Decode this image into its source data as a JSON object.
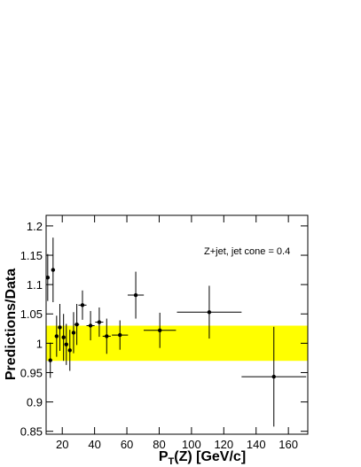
{
  "chart_data": {
    "type": "errorbar",
    "xlabel": [
      "P",
      "T",
      "(Z) [GeV/c]"
    ],
    "ylabel": "Predictions/Data",
    "annotation": "Z+jet, jet cone = 0.4",
    "xlim": [
      10,
      172
    ],
    "ylim": [
      0.845,
      1.218
    ],
    "xticks": [
      20,
      40,
      60,
      80,
      100,
      120,
      140,
      160
    ],
    "yticks": [
      0.85,
      0.9,
      0.95,
      1,
      1.05,
      1.1,
      1.15,
      1.2
    ],
    "band": {
      "range": [
        0.97,
        1.03
      ],
      "color": "#ffff00"
    },
    "series": [
      {
        "color": "#000000",
        "x": [
          11,
          12.6,
          14.3,
          16.5,
          18.5,
          20.8,
          22.5,
          24.7,
          27,
          29,
          32.5,
          37.5,
          42.9,
          47.5,
          55.7,
          65.5,
          80.4,
          111,
          151
        ],
        "values": [
          1.112,
          0.971,
          1.125,
          1.012,
          1.027,
          1.01,
          0.998,
          0.988,
          1.018,
          1.032,
          1.065,
          1.03,
          1.036,
          1.012,
          1.014,
          1.082,
          1.022,
          1.053,
          0.943
        ],
        "xerr": [
          1,
          1,
          1,
          1,
          1,
          1,
          1,
          1,
          1,
          1.5,
          2.5,
          2.5,
          2.5,
          2.5,
          5,
          5,
          10,
          20,
          20
        ],
        "yerr": [
          0.04,
          0.03,
          0.055,
          0.035,
          0.04,
          0.04,
          0.035,
          0.035,
          0.035,
          0.035,
          0.025,
          0.025,
          0.025,
          0.03,
          0.025,
          0.04,
          0.03,
          0.045,
          0.085
        ]
      }
    ]
  }
}
